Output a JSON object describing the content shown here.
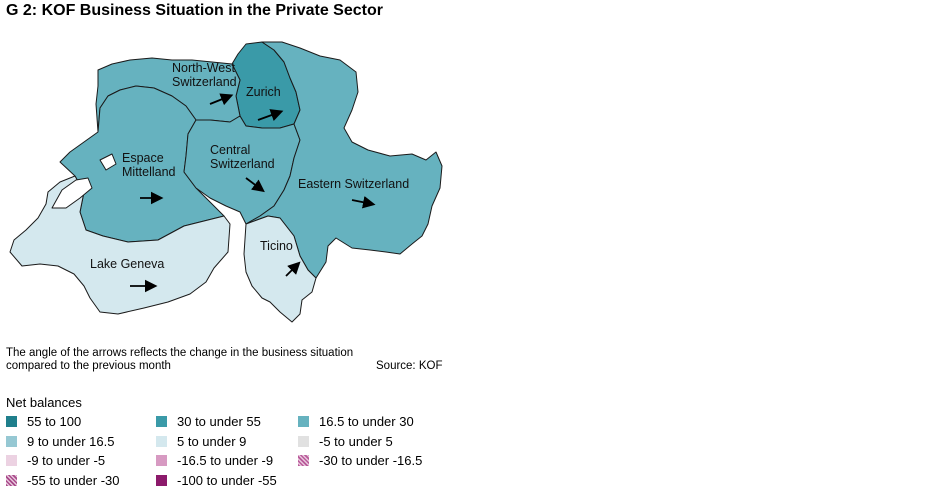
{
  "title": "G 2: KOF Business Situation in the Private Sector",
  "map": {
    "regions": [
      {
        "name": "Zurich",
        "label_lines": [
          "Zurich"
        ],
        "class": "30 to under 55",
        "color": "#3a9aa8",
        "arrow": "up-right"
      },
      {
        "name": "North-West Switzerland",
        "label_lines": [
          "North-West",
          "Switzerland"
        ],
        "class": "16.5 to under 30",
        "color": "#66b2bf",
        "arrow": "up-right"
      },
      {
        "name": "Espace Mittelland",
        "label_lines": [
          "Espace",
          "Mittelland"
        ],
        "class": "16.5 to under 30",
        "color": "#66b2bf",
        "arrow": "right"
      },
      {
        "name": "Central Switzerland",
        "label_lines": [
          "Central",
          "Switzerland"
        ],
        "class": "16.5 to under 30",
        "color": "#66b2bf",
        "arrow": "down-right"
      },
      {
        "name": "Eastern Switzerland",
        "label_lines": [
          "Eastern Switzerland"
        ],
        "class": "16.5 to under 30",
        "color": "#66b2bf",
        "arrow": "right"
      },
      {
        "name": "Lake Geneva",
        "label_lines": [
          "Lake Geneva"
        ],
        "class": "5 to under 9",
        "color": "#d4e8ee",
        "arrow": "right"
      },
      {
        "name": "Ticino",
        "label_lines": [
          "Ticino"
        ],
        "class": "5 to under 9",
        "color": "#d4e8ee",
        "arrow": "up-right"
      }
    ]
  },
  "note": "The angle of the arrows reflects the change in the business situation compared to the previous month",
  "source": "Source: KOF",
  "legend": {
    "title": "Net balances",
    "items": [
      {
        "label": "55 to 100",
        "color": "#1f7f8c",
        "pattern": false
      },
      {
        "label": "30 to under 55",
        "color": "#3a9aa8",
        "pattern": false
      },
      {
        "label": "16.5 to under 30",
        "color": "#66b2bf",
        "pattern": false
      },
      {
        "label": "9 to under 16.5",
        "color": "#96c8d3",
        "pattern": false
      },
      {
        "label": "5 to under 9",
        "color": "#d4e8ee",
        "pattern": false
      },
      {
        "label": "-5 to under 5",
        "color": "#e1e1e1",
        "pattern": false
      },
      {
        "label": "-9 to under -5",
        "color": "#ecd2e2",
        "pattern": false
      },
      {
        "label": "-16.5 to under -9",
        "color": "#d79ac2",
        "pattern": false
      },
      {
        "label": "-30 to under -16.5",
        "color": "#b95a9a",
        "pattern": true
      },
      {
        "label": "-55 to under -30",
        "color": "#a84a8a",
        "pattern": true
      },
      {
        "label": "-100 to under -55",
        "color": "#8c1a6b",
        "pattern": false
      }
    ]
  }
}
